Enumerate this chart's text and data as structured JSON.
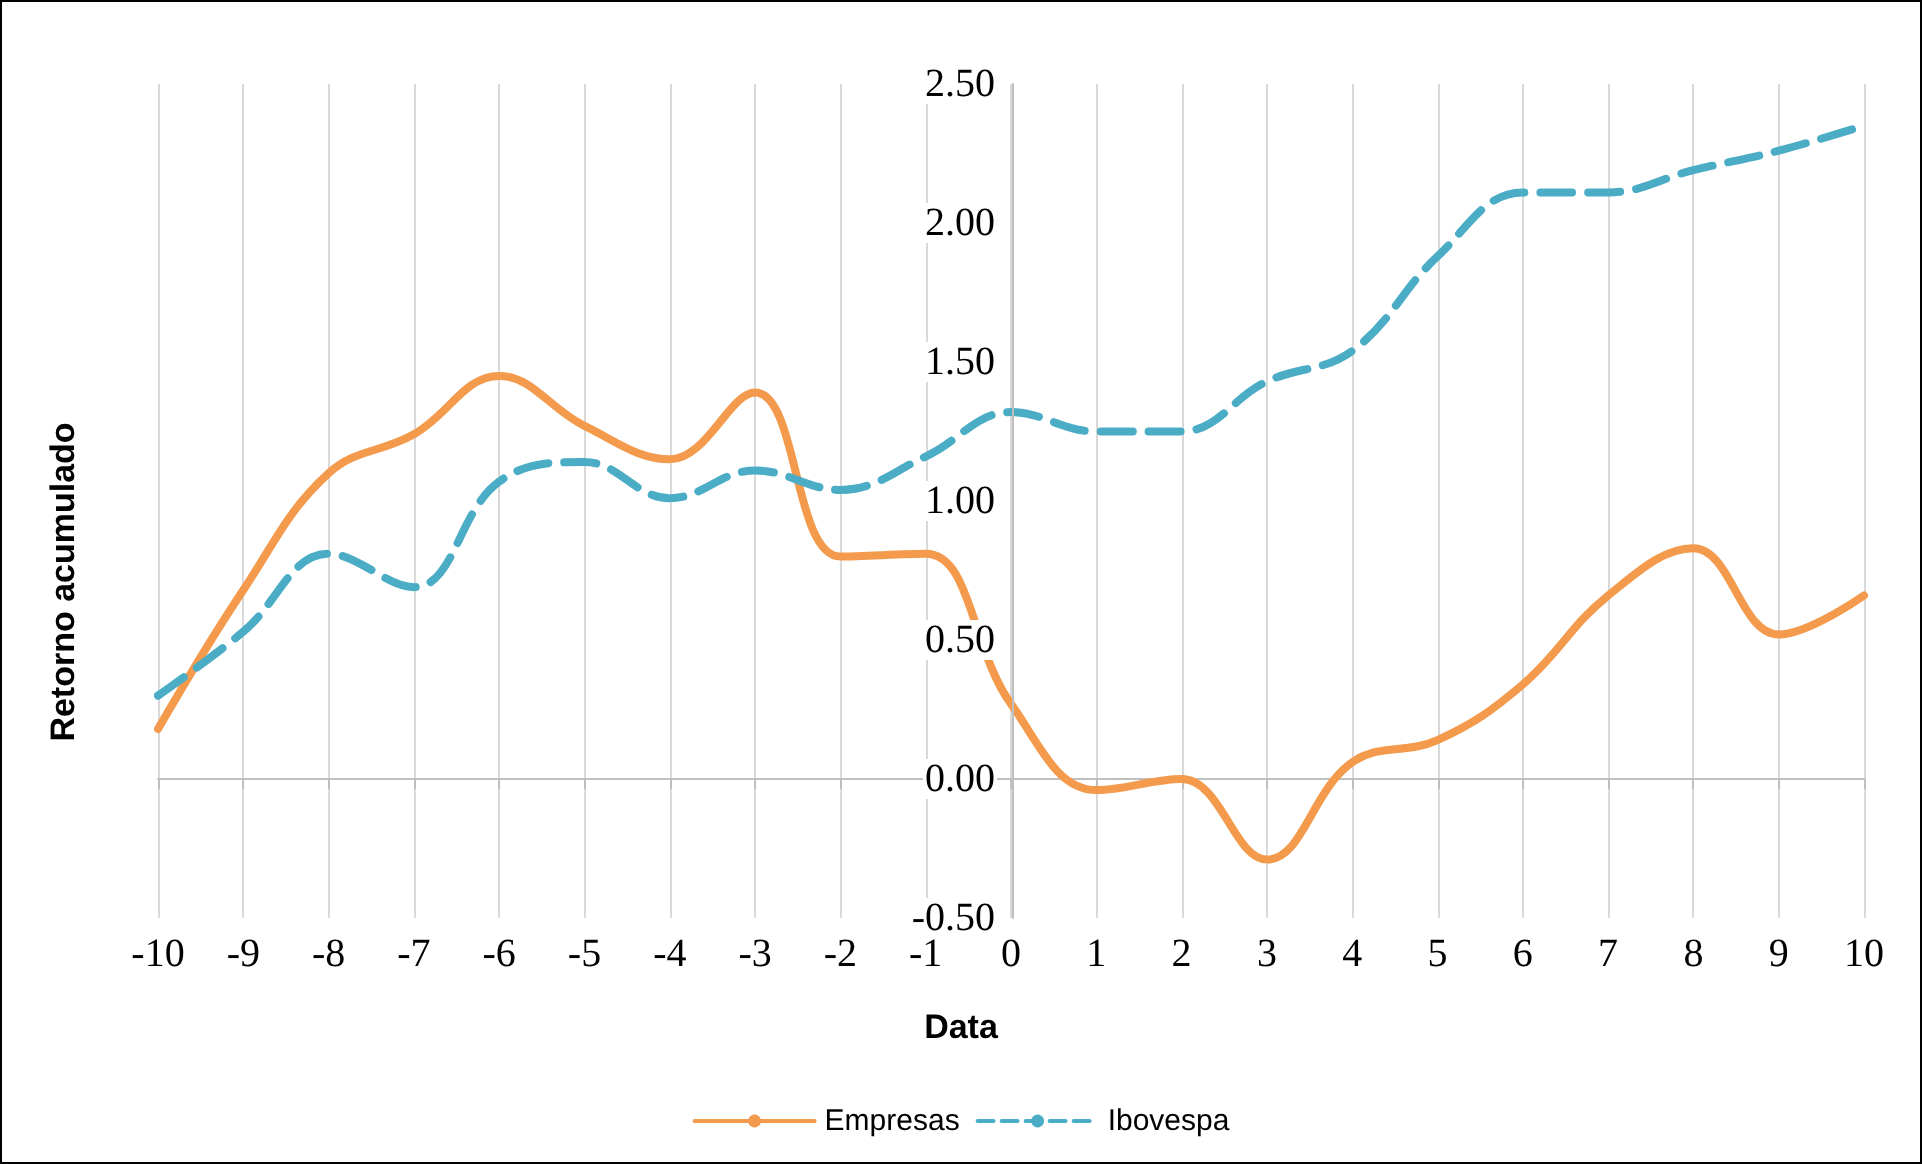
{
  "chart_data": {
    "type": "line",
    "xlabel": "Data",
    "ylabel": "Retorno acumulado",
    "x": [
      -10,
      -9,
      -8,
      -7,
      -6,
      -5,
      -4,
      -3,
      -2,
      -1,
      0,
      1,
      2,
      3,
      4,
      5,
      6,
      7,
      8,
      9,
      10
    ],
    "series": [
      {
        "name": "Empresas",
        "color": "#f39a4c",
        "line_style": "solid",
        "values": [
          0.18,
          0.68,
          1.1,
          1.24,
          1.45,
          1.27,
          1.15,
          1.39,
          0.8,
          0.81,
          0.27,
          -0.04,
          0.0,
          -0.29,
          0.06,
          0.14,
          0.34,
          0.66,
          0.83,
          0.52,
          0.66
        ]
      },
      {
        "name": "Ibovespa",
        "color": "#4bacc6",
        "line_style": "dashed",
        "values": [
          0.3,
          0.53,
          0.81,
          0.69,
          1.07,
          1.14,
          1.01,
          1.11,
          1.04,
          1.16,
          1.32,
          1.25,
          1.25,
          1.43,
          1.54,
          1.88,
          2.11,
          2.11,
          2.19,
          2.26,
          2.35
        ]
      }
    ],
    "xlim": [
      -10,
      10
    ],
    "xticks": [
      -10,
      -9,
      -8,
      -7,
      -6,
      -5,
      -4,
      -3,
      -2,
      -1,
      0,
      1,
      2,
      3,
      4,
      5,
      6,
      7,
      8,
      9,
      10
    ],
    "ylim": [
      -0.5,
      2.5
    ],
    "yticks": [
      {
        "value": -0.5,
        "label": "-0.50"
      },
      {
        "value": 0,
        "label": "0.00"
      },
      {
        "value": 0.5,
        "label": "0.50"
      },
      {
        "value": 1,
        "label": "1.00"
      },
      {
        "value": 1.5,
        "label": "1.50"
      },
      {
        "value": 2,
        "label": "2.00"
      },
      {
        "value": 2.5,
        "label": "2.50"
      }
    ],
    "grid": "x",
    "legend": "bottom",
    "marker": "none"
  }
}
